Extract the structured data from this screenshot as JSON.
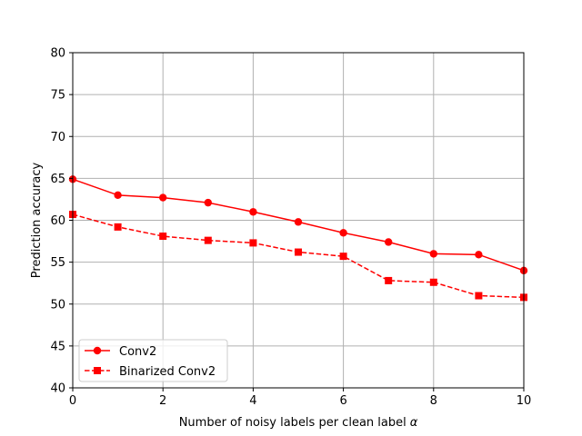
{
  "chart_data": {
    "type": "line",
    "xlabel_main": "Number of noisy labels per clean label",
    "xlabel_symbol": "α",
    "ylabel": "Prediction accuracy",
    "xlim": [
      0,
      10
    ],
    "ylim": [
      40,
      80
    ],
    "grid": true,
    "legend_position": "lower-left",
    "x_ticks": [
      "0",
      "2",
      "4",
      "6",
      "8",
      "10"
    ],
    "y_ticks": [
      "40",
      "45",
      "50",
      "55",
      "60",
      "65",
      "70",
      "75",
      "80"
    ],
    "x": [
      0,
      1,
      2,
      3,
      4,
      5,
      6,
      7,
      8,
      9,
      10
    ],
    "series": [
      {
        "name": "Conv2",
        "color": "#ff0000",
        "line_style": "solid",
        "marker": "circle",
        "values": [
          64.9,
          63.0,
          62.7,
          62.1,
          61.0,
          59.8,
          58.5,
          57.4,
          56.0,
          55.9,
          54.0
        ]
      },
      {
        "name": "Binarized Conv2",
        "color": "#ff0000",
        "line_style": "dashed",
        "marker": "square",
        "values": [
          60.7,
          59.2,
          58.1,
          57.6,
          57.3,
          56.2,
          55.7,
          52.8,
          52.6,
          51.0,
          50.8
        ]
      }
    ]
  }
}
